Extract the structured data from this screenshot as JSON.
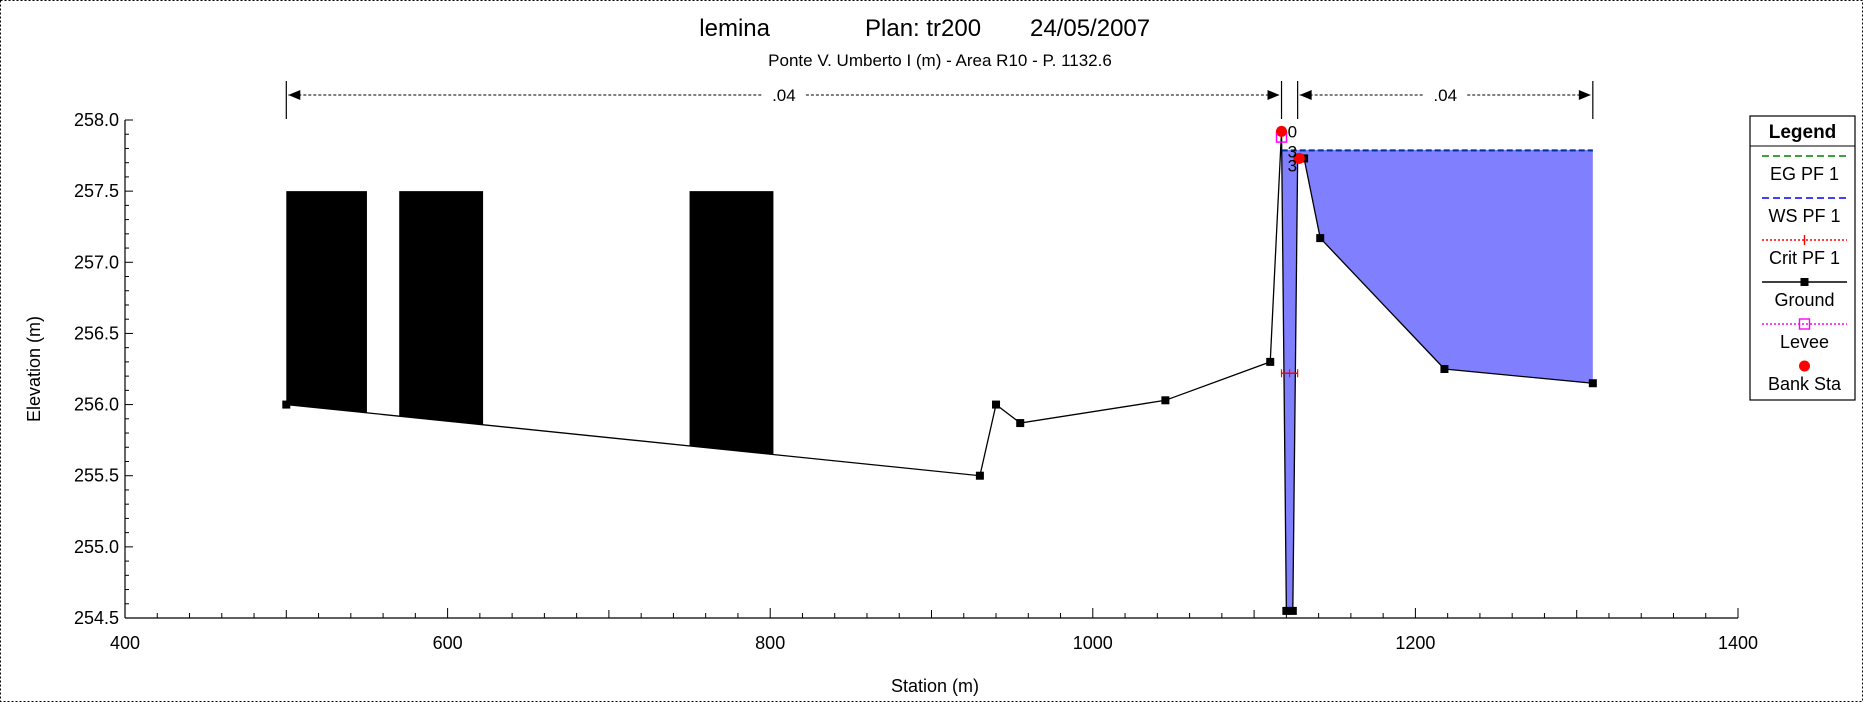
{
  "chart_data": {
    "type": "line",
    "title_parts": [
      "lemina",
      "Plan: tr200",
      "24/05/2007"
    ],
    "subtitle": "Ponte V. Umberto I (m) - Area R10 - P. 1132.6",
    "xlabel": "Station (m)",
    "ylabel": "Elevation (m)",
    "xlim": [
      400,
      1400
    ],
    "ylim": [
      254.5,
      258.0
    ],
    "x_ticks": [
      "400",
      "600",
      "800",
      "1000",
      "1200",
      "1400"
    ],
    "y_ticks": [
      "254.5",
      "255.0",
      "255.5",
      "256.0",
      "256.5",
      "257.0",
      "257.5",
      "258.0"
    ],
    "ground": {
      "x": [
        500,
        930,
        940,
        955,
        1045,
        1110,
        1117,
        1120,
        1124,
        1127,
        1131,
        1141,
        1218,
        1310
      ],
      "y": [
        256.0,
        255.5,
        256.0,
        255.87,
        256.03,
        256.3,
        257.92,
        254.55,
        254.55,
        257.73,
        257.73,
        257.17,
        256.25,
        256.15
      ]
    },
    "bridge_blocks": [
      {
        "x_from": 500,
        "x_to": 550,
        "top": 257.5
      },
      {
        "x_from": 570,
        "x_to": 622,
        "top": 257.5
      },
      {
        "x_from": 750,
        "x_to": 802,
        "top": 257.5
      }
    ],
    "water_surface": 257.79,
    "critical_ws": 256.22,
    "critical_range": [
      1117,
      1127
    ],
    "bank_stations": [
      {
        "x": 1117,
        "y": 257.92
      },
      {
        "x": 1128,
        "y": 257.73
      }
    ],
    "levee": {
      "x": 1117,
      "y": 257.88
    },
    "mannings_n": [
      {
        "label": ".04",
        "x_from": 500,
        "x_to": 1117
      },
      {
        "label": ".04",
        "x_from": 1127,
        "x_to": 1310
      }
    ],
    "point_labels": [
      {
        "text": "0",
        "x": 1120,
        "y": 257.92
      },
      {
        "text": "3",
        "x": 1120,
        "y": 257.78
      },
      {
        "text": "3",
        "x": 1120,
        "y": 257.68
      }
    ],
    "legend": {
      "title": "Legend",
      "position": "right",
      "entries": [
        {
          "label": "EG PF 1",
          "color": "#008000",
          "style": "dashed"
        },
        {
          "label": "WS PF 1",
          "color": "#0000ff",
          "style": "dashed"
        },
        {
          "label": "Crit PF 1",
          "color": "#ff0000",
          "style": "dotted-cross"
        },
        {
          "label": "Ground",
          "color": "#000000",
          "style": "line-square"
        },
        {
          "label": "Levee",
          "color": "#ff00ff",
          "style": "dotted-open-square"
        },
        {
          "label": "Bank Sta",
          "color": "#ff0000",
          "style": "dot"
        }
      ]
    },
    "colors": {
      "water_fill": "#8080ff",
      "ground": "#000000",
      "eg": "#008000",
      "ws": "#0000ff",
      "crit": "#ff0000",
      "bank": "#ff0000",
      "levee": "#ff00ff"
    }
  }
}
